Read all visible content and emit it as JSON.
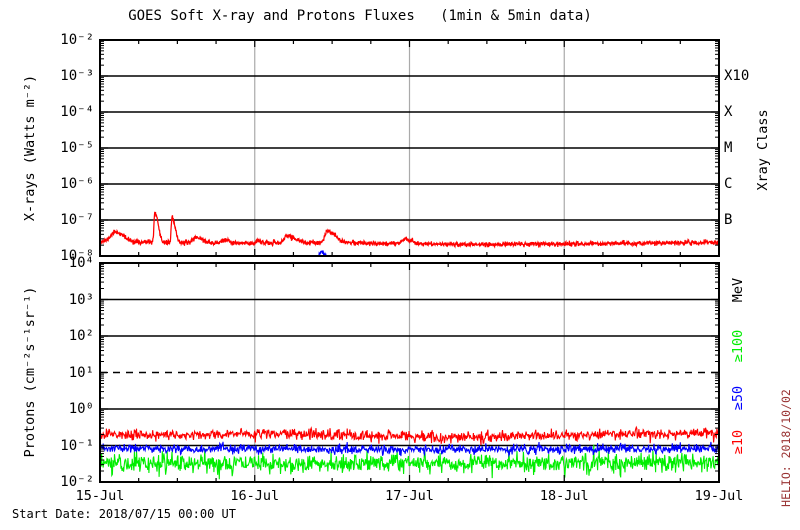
{
  "labels": {
    "title": "GOES Soft X-ray and Protons Fluxes   (1min & 5min data)",
    "start_date": "Start Date: 2018/07/15 00:00 UT",
    "credit": "HELIO: 2018/10/02",
    "credit_color": "#993333"
  },
  "colors": {
    "frame": "#000000",
    "grid_vertical": "#aaaaaa",
    "xray_long": "#ff0000",
    "xray_short": "#0000ff",
    "proton_ge10": "#ff0000",
    "proton_ge50": "#0000ff",
    "proton_ge100": "#00ee00"
  },
  "chart_data": {
    "type": "line",
    "x_axis": {
      "days": 4,
      "tick_labels": [
        "15-Jul",
        "16-Jul",
        "17-Jul",
        "18-Jul",
        "19-Jul"
      ],
      "minor_step_days": 0.25,
      "vertical_grid_days": [
        1,
        2,
        3
      ]
    },
    "panels": [
      {
        "id": "xray",
        "ylabel": "X-rays (Watts m⁻²)",
        "y_log_range": [
          -8,
          -2
        ],
        "y_tick_labels": [
          "10⁻²",
          "10⁻³",
          "10⁻⁴",
          "10⁻⁵",
          "10⁻⁶",
          "10⁻⁷",
          "10⁻⁸"
        ],
        "solid_decades": [
          -3,
          -4,
          -5,
          -6,
          -7
        ],
        "dashed_decades": [],
        "right_axis_title": "Xray Class",
        "right_labels": [
          {
            "text": "X10",
            "log": -3,
            "color": "#000000",
            "rotated": false
          },
          {
            "text": "X",
            "log": -4,
            "color": "#000000",
            "rotated": false
          },
          {
            "text": "M",
            "log": -5,
            "color": "#000000",
            "rotated": false
          },
          {
            "text": "C",
            "log": -6,
            "color": "#000000",
            "rotated": false
          },
          {
            "text": "B",
            "log": -7,
            "color": "#000000",
            "rotated": false
          }
        ],
        "series": [
          {
            "name": "xray-long-1-8A",
            "color": "#ff0000",
            "width": 1.25,
            "points_per_day": 480,
            "seed": 11,
            "noise": 0.032,
            "drift": [
              [
                0,
                -7.6
              ],
              [
                0.5,
                -7.63
              ],
              [
                1,
                -7.65
              ],
              [
                1.6,
                -7.63
              ],
              [
                2,
                -7.66
              ],
              [
                2.5,
                -7.68
              ],
              [
                3,
                -7.66
              ],
              [
                3.5,
                -7.65
              ],
              [
                4,
                -7.62
              ]
            ],
            "peaks": [
              [
                0.1,
                -7.33,
                0.03,
                0.05
              ],
              [
                0.355,
                -6.8,
                0.006,
                0.02
              ],
              [
                0.465,
                -6.94,
                0.005,
                0.02
              ],
              [
                0.62,
                -7.48,
                0.02,
                0.04
              ],
              [
                0.8,
                -7.56,
                0.015,
                0.03
              ],
              [
                1.02,
                -7.55,
                0.01,
                0.02
              ],
              [
                1.21,
                -7.44,
                0.02,
                0.05
              ],
              [
                1.47,
                -7.3,
                0.015,
                0.05
              ],
              [
                1.97,
                -7.52,
                0.02,
                0.04
              ]
            ]
          },
          {
            "name": "xray-short-05-4A",
            "color": "#0000ff",
            "width": 1.2,
            "points_per_day": 480,
            "seed": 7,
            "noise": 0.03,
            "drift": [
              [
                0,
                -8.4
              ],
              [
                4,
                -8.4
              ]
            ],
            "peaks": [
              [
                1.43,
                -7.9,
                0.02,
                0.045
              ]
            ]
          }
        ]
      },
      {
        "id": "protons",
        "ylabel": "Protons (cm⁻²s⁻¹sr⁻¹)",
        "y_log_range": [
          -2,
          4
        ],
        "y_tick_labels": [
          "10⁴",
          "10³",
          "10²",
          "10¹",
          "10⁰",
          "10⁻¹",
          "10⁻²"
        ],
        "solid_decades": [
          3,
          2,
          0,
          -1
        ],
        "dashed_decades": [
          1
        ],
        "right_axis_title": "MeV",
        "right_labels": [
          {
            "text": "MeV",
            "log": 3.25,
            "color": "#000000",
            "rotated": true
          },
          {
            "text": "≥100",
            "log": 1.73,
            "color": "#00ee00",
            "rotated": true
          },
          {
            "text": "≥50",
            "log": 0.3,
            "color": "#0000ff",
            "rotated": true
          },
          {
            "text": "≥10",
            "log": -0.9,
            "color": "#ff0000",
            "rotated": true
          }
        ],
        "series": [
          {
            "name": "proton-ge100MeV",
            "color": "#00ee00",
            "width": 1.1,
            "points_per_day": 288,
            "seed": 31,
            "noise": 0.13,
            "drift": [
              [
                0,
                -1.48
              ],
              [
                1,
                -1.5
              ],
              [
                2,
                -1.47
              ],
              [
                3,
                -1.49
              ],
              [
                4,
                -1.46
              ]
            ],
            "peaks": []
          },
          {
            "name": "proton-ge50MeV",
            "color": "#0000ff",
            "width": 1.1,
            "points_per_day": 288,
            "seed": 23,
            "noise": 0.06,
            "drift": [
              [
                0,
                -1.08
              ],
              [
                1,
                -1.1
              ],
              [
                2,
                -1.12
              ],
              [
                3,
                -1.1
              ],
              [
                4,
                -1.08
              ]
            ],
            "peaks": []
          },
          {
            "name": "proton-ge10MeV",
            "color": "#ff0000",
            "width": 1.1,
            "points_per_day": 288,
            "seed": 17,
            "noise": 0.075,
            "drift": [
              [
                0,
                -0.7
              ],
              [
                0.6,
                -0.72
              ],
              [
                1.0,
                -0.68
              ],
              [
                1.5,
                -0.7
              ],
              [
                2.0,
                -0.75
              ],
              [
                2.3,
                -0.8
              ],
              [
                2.6,
                -0.75
              ],
              [
                3.0,
                -0.72
              ],
              [
                3.3,
                -0.7
              ],
              [
                3.6,
                -0.68
              ],
              [
                4,
                -0.66
              ]
            ],
            "peaks": []
          }
        ]
      }
    ]
  }
}
